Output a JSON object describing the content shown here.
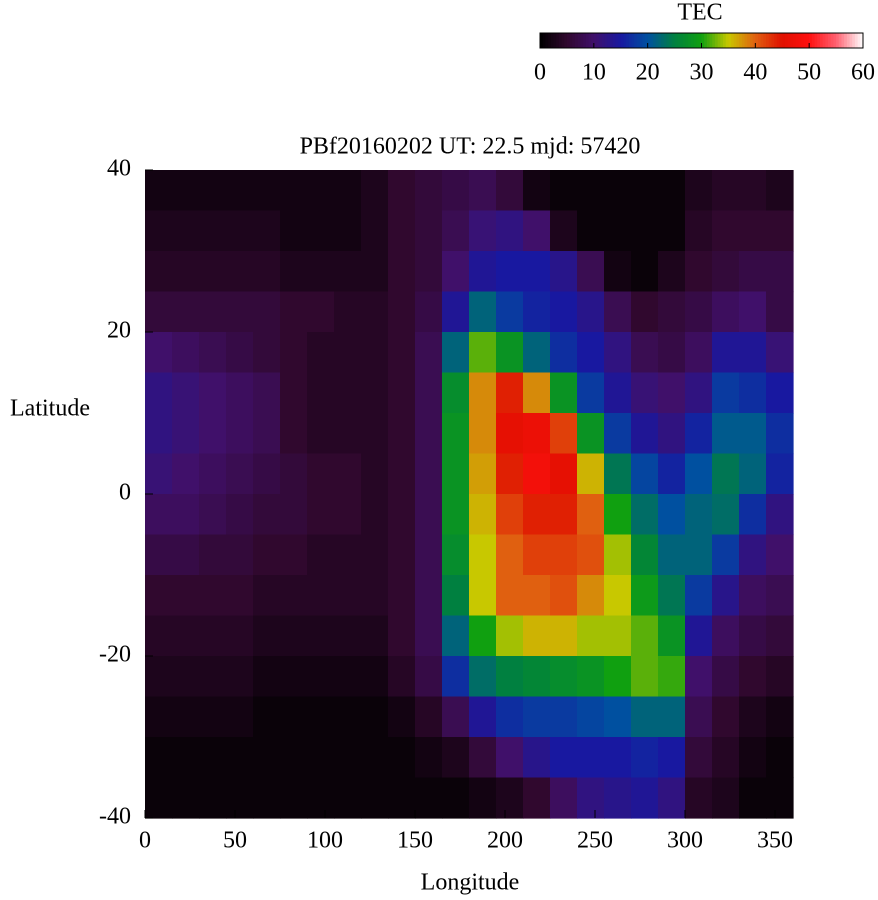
{
  "chart_data": {
    "type": "heatmap",
    "title": "PBf20160202  UT: 22.5  mjd: 57420",
    "xlabel": "Longitude",
    "ylabel": "Latitude",
    "colorbar_label": "TEC",
    "xlim": [
      0,
      360
    ],
    "ylim": [
      -40,
      40
    ],
    "xticks": [
      0,
      50,
      100,
      150,
      200,
      250,
      300,
      350
    ],
    "yticks": [
      -40,
      -20,
      0,
      20,
      40
    ],
    "clim": [
      0,
      60
    ],
    "cticks": [
      0,
      10,
      20,
      30,
      40,
      50,
      60
    ],
    "colormap": [
      "#000000",
      "#30082e",
      "#40106a",
      "#1818a0",
      "#0050a0",
      "#008040",
      "#10a010",
      "#c8c800",
      "#e06010",
      "#e01000",
      "#ff1010",
      "#ff6070",
      "#ffffff"
    ],
    "x": [
      7.5,
      22.5,
      37.5,
      52.5,
      67.5,
      82.5,
      97.5,
      112.5,
      127.5,
      142.5,
      157.5,
      172.5,
      187.5,
      202.5,
      217.5,
      232.5,
      247.5,
      262.5,
      277.5,
      292.5,
      307.5,
      322.5,
      337.5,
      352.5
    ],
    "y": [
      37.5,
      32.5,
      27.5,
      22.5,
      17.5,
      12.5,
      7.5,
      2.5,
      -2.5,
      -7.5,
      -12.5,
      -17.5,
      -22.5,
      -27.5,
      -32.5,
      -37.5
    ],
    "values": [
      [
        2,
        2,
        2,
        2,
        2,
        2,
        2,
        2,
        3,
        5,
        6,
        7,
        8,
        6,
        2,
        1,
        1,
        1,
        1,
        1,
        3,
        4,
        4,
        3
      ],
      [
        3,
        3,
        3,
        3,
        3,
        2,
        2,
        2,
        3,
        5,
        6,
        8,
        11,
        12,
        10,
        3,
        1,
        1,
        1,
        1,
        4,
        5,
        5,
        5
      ],
      [
        4,
        4,
        4,
        4,
        4,
        3,
        3,
        3,
        3,
        5,
        6,
        10,
        14,
        15,
        15,
        13,
        8,
        2,
        1,
        3,
        5,
        6,
        7,
        7
      ],
      [
        6,
        6,
        6,
        6,
        6,
        5,
        5,
        4,
        4,
        5,
        7,
        14,
        22,
        18,
        16,
        15,
        13,
        8,
        5,
        6,
        7,
        9,
        10,
        7
      ],
      [
        10,
        9,
        8,
        7,
        6,
        5,
        4,
        4,
        4,
        5,
        8,
        22,
        32,
        28,
        22,
        17,
        15,
        12,
        8,
        7,
        9,
        14,
        14,
        11
      ],
      [
        12,
        11,
        10,
        9,
        8,
        5,
        4,
        4,
        4,
        5,
        8,
        27,
        38,
        44,
        38,
        28,
        18,
        14,
        11,
        10,
        12,
        18,
        17,
        15
      ],
      [
        12,
        11,
        10,
        9,
        8,
        5,
        4,
        4,
        4,
        5,
        8,
        28,
        38,
        46,
        47,
        42,
        28,
        18,
        14,
        12,
        16,
        21,
        21,
        17
      ],
      [
        11,
        10,
        9,
        8,
        7,
        6,
        5,
        5,
        4,
        5,
        8,
        28,
        37,
        44,
        48,
        46,
        36,
        24,
        19,
        16,
        20,
        24,
        22,
        16
      ],
      [
        9,
        9,
        8,
        7,
        6,
        6,
        5,
        5,
        4,
        5,
        8,
        28,
        36,
        42,
        44,
        44,
        40,
        30,
        23,
        20,
        22,
        23,
        17,
        12
      ],
      [
        7,
        7,
        6,
        6,
        5,
        5,
        4,
        4,
        4,
        5,
        8,
        27,
        35,
        40,
        42,
        42,
        41,
        34,
        26,
        22,
        22,
        18,
        12,
        10
      ],
      [
        5,
        5,
        5,
        5,
        4,
        4,
        4,
        4,
        4,
        5,
        8,
        25,
        35,
        40,
        40,
        41,
        38,
        35,
        29,
        24,
        18,
        13,
        9,
        8
      ],
      [
        4,
        4,
        4,
        4,
        3,
        3,
        3,
        3,
        3,
        5,
        8,
        22,
        30,
        34,
        36,
        36,
        34,
        34,
        32,
        28,
        14,
        9,
        7,
        6
      ],
      [
        3,
        3,
        3,
        3,
        2,
        2,
        2,
        2,
        2,
        4,
        7,
        17,
        23,
        25,
        26,
        27,
        28,
        30,
        32,
        31,
        10,
        7,
        5,
        4
      ],
      [
        2,
        2,
        2,
        2,
        1,
        1,
        1,
        1,
        1,
        2,
        4,
        8,
        14,
        17,
        18,
        18,
        19,
        20,
        22,
        22,
        8,
        5,
        3,
        2
      ],
      [
        1,
        1,
        1,
        1,
        1,
        1,
        1,
        1,
        1,
        1,
        2,
        3,
        6,
        10,
        13,
        15,
        15,
        15,
        16,
        15,
        6,
        4,
        2,
        1
      ],
      [
        1,
        1,
        1,
        1,
        1,
        1,
        1,
        1,
        1,
        1,
        1,
        1,
        2,
        3,
        5,
        9,
        12,
        13,
        14,
        12,
        4,
        3,
        1,
        1
      ]
    ]
  }
}
